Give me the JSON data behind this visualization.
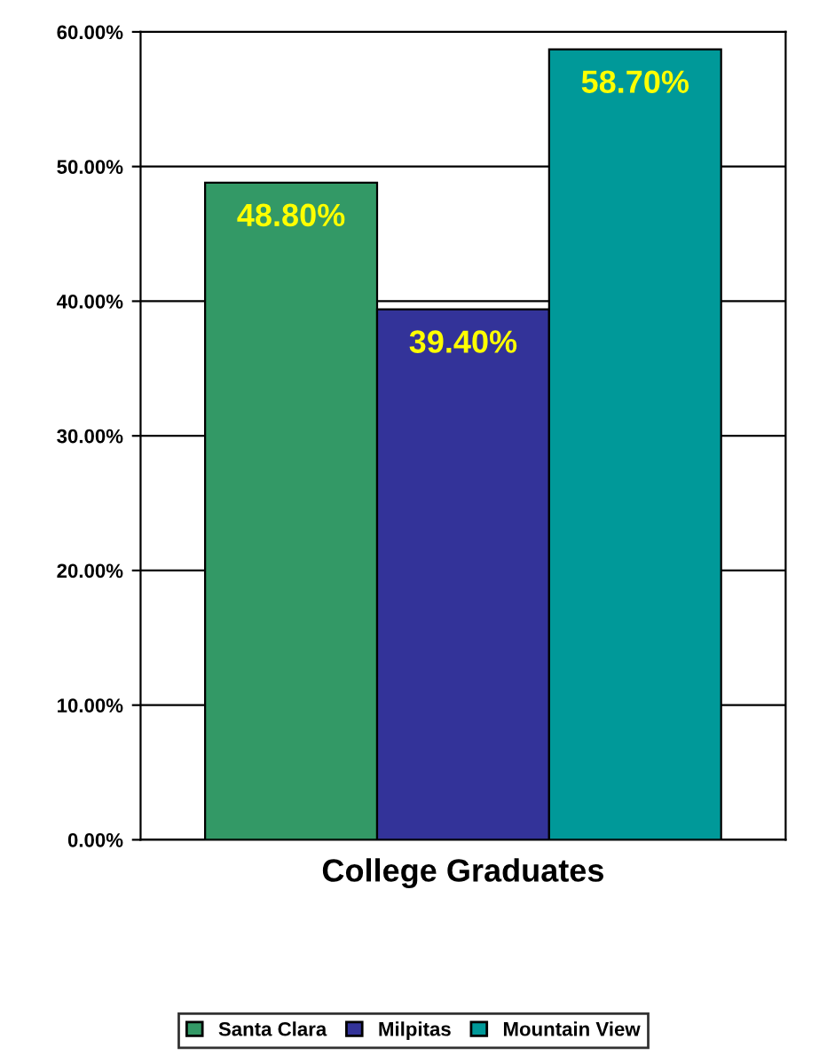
{
  "chart_data": {
    "type": "bar",
    "xlabel": "College Graduates",
    "categories": [
      null
    ],
    "series": [
      {
        "name": "Santa Clara",
        "color": "#339966",
        "values": [
          48.8
        ],
        "value_labels": [
          "48.80%"
        ]
      },
      {
        "name": "Milpitas",
        "color": "#333399",
        "values": [
          39.4
        ],
        "value_labels": [
          "39.40%"
        ]
      },
      {
        "name": "Mountain View",
        "color": "#009999",
        "values": [
          58.7
        ],
        "value_labels": [
          "58.70%"
        ]
      }
    ],
    "ylim": [
      0,
      60
    ],
    "yticks": [
      {
        "value": 0,
        "label": "0.00%"
      },
      {
        "value": 10,
        "label": "10.00%"
      },
      {
        "value": 20,
        "label": "20.00%"
      },
      {
        "value": 30,
        "label": "30.00%"
      },
      {
        "value": 40,
        "label": "40.00%"
      },
      {
        "value": 50,
        "label": "50.00%"
      },
      {
        "value": 60,
        "label": "60.00%"
      }
    ],
    "grid": "y",
    "legend": "bottom"
  }
}
